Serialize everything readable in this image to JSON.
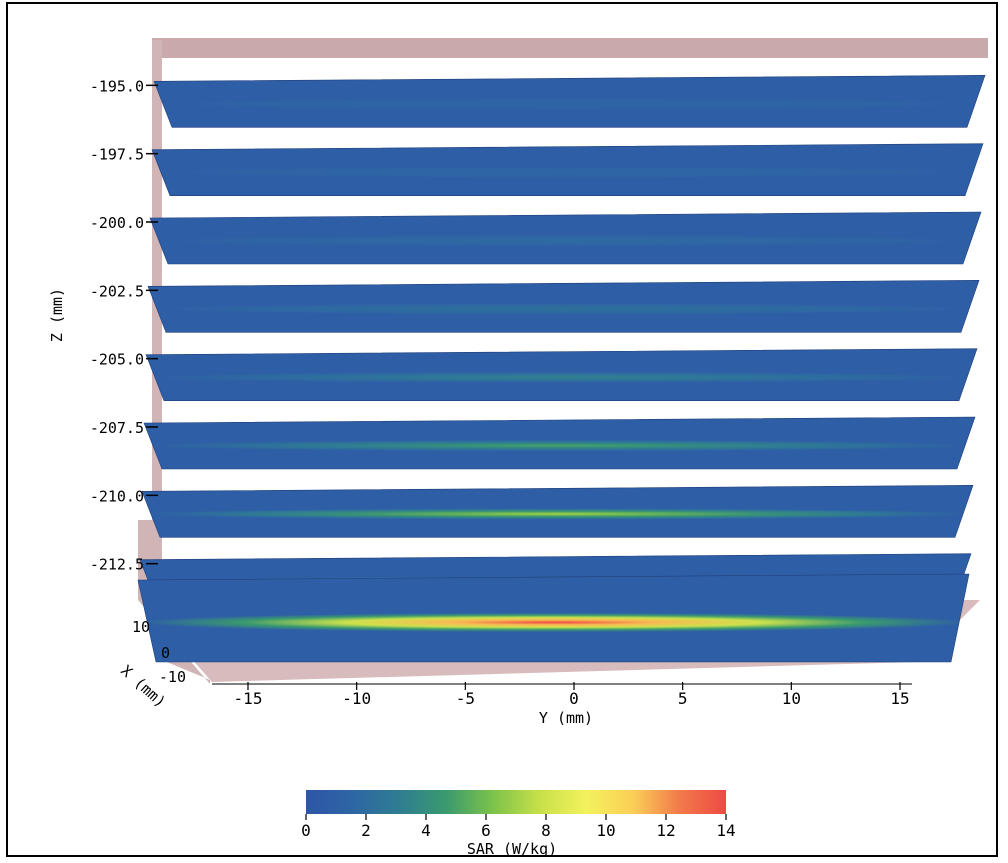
{
  "chart_data": {
    "type": "heatmap",
    "description_kind": "3d-slice-stack",
    "xlabel": "Y (mm)",
    "ylabel": "Z (mm)",
    "depth_label": "X (mm)",
    "y_axis": {
      "ticks": [
        "-15",
        "-10",
        "-5",
        "0",
        "5",
        "10",
        "15"
      ],
      "range": [
        -16,
        16
      ]
    },
    "z_axis": {
      "ticks": [
        "-195.0",
        "-197.5",
        "-200.0",
        "-202.5",
        "-205.0",
        "-207.5",
        "-210.0",
        "-212.5"
      ],
      "range": [
        -215,
        -194
      ]
    },
    "x_axis": {
      "ticks": [
        "10",
        "0",
        "-10"
      ]
    },
    "slices_z_mm": [
      -195.0,
      -197.5,
      -200.0,
      -202.5,
      -205.0,
      -207.5,
      -210.0,
      -212.5,
      -215.0
    ],
    "slice_peak_sar": [
      0.8,
      1.0,
      1.3,
      1.8,
      2.8,
      4.5,
      6.5,
      9.0,
      14.0
    ],
    "colorbar": {
      "label": "SAR (W/kg)",
      "ticks": [
        "0",
        "2",
        "4",
        "6",
        "8",
        "10",
        "12",
        "14"
      ],
      "range": [
        0,
        14
      ],
      "colors": [
        "#2d55a8",
        "#2e66a4",
        "#2f7d92",
        "#3a9a6e",
        "#7cc24a",
        "#c7e04a",
        "#f3f25c",
        "#fbcf57",
        "#f27a4a",
        "#ee4a43"
      ]
    }
  }
}
